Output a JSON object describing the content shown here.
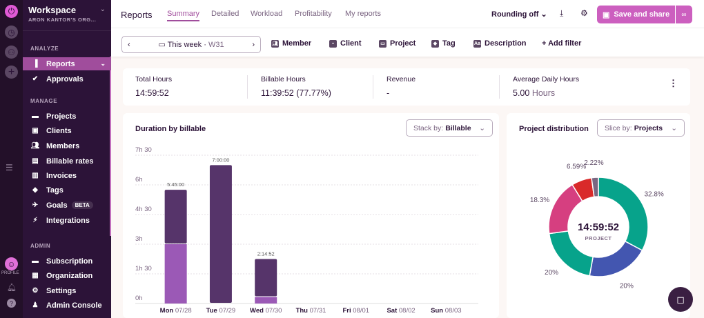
{
  "rail": {
    "icons": [
      "power-icon",
      "clock-icon",
      "team-icon",
      "plus-icon"
    ],
    "profile_label": "PROFILE"
  },
  "sidebar": {
    "workspace": "Workspace",
    "org": "ARON KANTOR'S ORG...",
    "sections": [
      {
        "label": "ANALYZE",
        "items": [
          {
            "label": "Reports",
            "icon": "chart-icon",
            "active": true
          },
          {
            "label": "Approvals",
            "icon": "check-circle-icon"
          }
        ]
      },
      {
        "label": "MANAGE",
        "items": [
          {
            "label": "Projects",
            "icon": "folder-icon"
          },
          {
            "label": "Clients",
            "icon": "client-icon"
          },
          {
            "label": "Members",
            "icon": "members-icon"
          },
          {
            "label": "Billable rates",
            "icon": "money-icon"
          },
          {
            "label": "Invoices",
            "icon": "invoice-icon"
          },
          {
            "label": "Tags",
            "icon": "tag-icon"
          },
          {
            "label": "Goals",
            "icon": "rocket-icon",
            "badge": "BETA"
          },
          {
            "label": "Integrations",
            "icon": "plug-icon"
          }
        ]
      },
      {
        "label": "ADMIN",
        "items": [
          {
            "label": "Subscription",
            "icon": "card-icon"
          },
          {
            "label": "Organization",
            "icon": "building-icon"
          },
          {
            "label": "Settings",
            "icon": "gear-icon"
          },
          {
            "label": "Admin Console",
            "icon": "admin-icon"
          }
        ]
      }
    ]
  },
  "header": {
    "title": "Reports",
    "tabs": [
      "Summary",
      "Detailed",
      "Workload",
      "Profitability",
      "My reports"
    ],
    "active_tab": "Summary",
    "rounding": "Rounding off",
    "save": "Save and share"
  },
  "filters": {
    "date": "This week",
    "week": "W31",
    "items": [
      "Member",
      "Client",
      "Project",
      "Tag",
      "Description"
    ],
    "add": "+ Add filter"
  },
  "stats": [
    {
      "label": "Total Hours",
      "value": "14:59:52"
    },
    {
      "label": "Billable Hours",
      "value": "11:39:52 (77.77%)"
    },
    {
      "label": "Revenue",
      "value": "-"
    },
    {
      "label": "Average Daily Hours",
      "value": "5.00",
      "unit": "Hours"
    }
  ],
  "colors": {
    "accent": "#cc5fbf",
    "billable": "#56346a",
    "non_billable": "#9b59b6"
  },
  "chart_data": [
    {
      "type": "bar",
      "title": "Duration by billable",
      "stack_label": "Stack by:",
      "stack_value": "Billable",
      "categories": [
        [
          "Mon",
          "07/28"
        ],
        [
          "Tue",
          "07/29"
        ],
        [
          "Wed",
          "07/30"
        ],
        [
          "Thu",
          "07/31"
        ],
        [
          "Fri",
          "08/01"
        ],
        [
          "Sat",
          "08/02"
        ],
        [
          "Sun",
          "08/03"
        ]
      ],
      "yticks": [
        "0h",
        "1h 30",
        "3h",
        "4h 30",
        "6h",
        "7h 30"
      ],
      "ylim": [
        0,
        7.5
      ],
      "series": [
        {
          "values": [
            3.0,
            0,
            0.33,
            0,
            0,
            0,
            0
          ],
          "color": "#9b59b6"
        },
        {
          "values": [
            2.75,
            7.0,
            1.92,
            0,
            0,
            0,
            0
          ],
          "color": "#56346a"
        }
      ],
      "totals": [
        "5:45:00",
        "7:00:00",
        "2:14:52",
        "",
        "",
        "",
        ""
      ]
    },
    {
      "type": "pie",
      "title": "Project distribution",
      "slice_label": "Slice by:",
      "slice_value": "Projects",
      "center_value": "14:59:52",
      "center_label": "PROJECT",
      "values": [
        32.8,
        20,
        20,
        18.3,
        6.59,
        2.22
      ],
      "labels": [
        "32.8%",
        "20%",
        "20%",
        "18.3%",
        "6.59%",
        "2.22%"
      ],
      "colors": [
        "#07a38b",
        "#4356b0",
        "#07a38b",
        "#d63f80",
        "#d92a2a",
        "#7a6782"
      ]
    }
  ]
}
